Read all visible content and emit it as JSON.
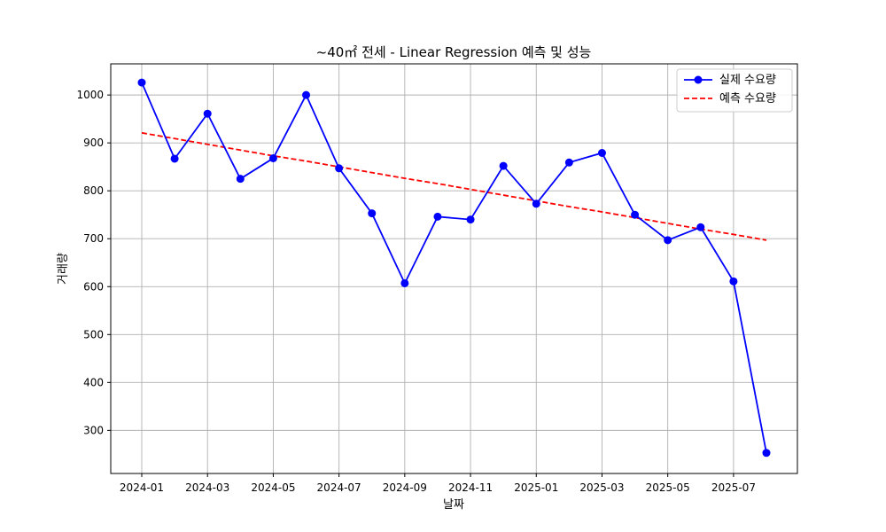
{
  "chart_data": {
    "type": "line",
    "title": "~40㎡ 전세 - Linear Regression 예측 및 성능",
    "xlabel": "날짜",
    "ylabel": "거래량",
    "x": [
      "2024-01",
      "2024-02",
      "2024-03",
      "2024-04",
      "2024-05",
      "2024-06",
      "2024-07",
      "2024-08",
      "2024-09",
      "2024-10",
      "2024-11",
      "2024-12",
      "2025-01",
      "2025-02",
      "2025-03",
      "2025-04",
      "2025-05",
      "2025-06",
      "2025-07",
      "2025-08"
    ],
    "x_tick_labels": [
      "2024-01",
      "2024-03",
      "2024-05",
      "2024-07",
      "2024-09",
      "2024-11",
      "2025-01",
      "2025-03",
      "2025-05",
      "2025-07"
    ],
    "y_ticks": [
      300,
      400,
      500,
      600,
      700,
      800,
      900,
      1000
    ],
    "ylim": [
      210,
      1065
    ],
    "grid": true,
    "legend_position": "top-right",
    "series": [
      {
        "name": "실제 수요량",
        "color": "#0000ff",
        "style": "solid-marker",
        "values": [
          1026,
          867,
          961,
          825,
          868,
          1000,
          847,
          753,
          607,
          746,
          740,
          852,
          773,
          859,
          879,
          750,
          697,
          724,
          611,
          253
        ]
      },
      {
        "name": "예측 수요량",
        "color": "#ff0000",
        "style": "dashed",
        "values": [
          921,
          909,
          897,
          885,
          873,
          862,
          850,
          838,
          826,
          815,
          803,
          791,
          779,
          767,
          756,
          744,
          732,
          720,
          709,
          697
        ]
      }
    ]
  }
}
